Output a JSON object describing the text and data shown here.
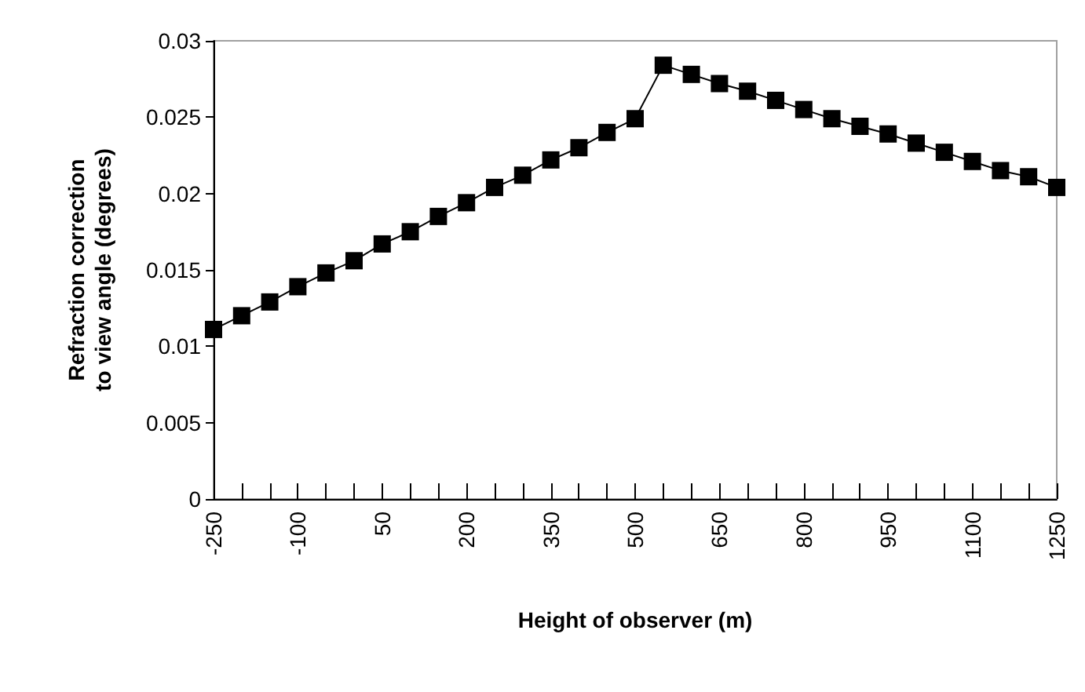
{
  "chart_data": {
    "type": "line",
    "xlabel": "Height of observer (m)",
    "ylabel": "Refraction correction to view angle (degrees)",
    "x": [
      -250,
      -200,
      -150,
      -100,
      -50,
      0,
      50,
      100,
      150,
      200,
      250,
      300,
      350,
      400,
      450,
      500,
      550,
      600,
      650,
      700,
      750,
      800,
      850,
      900,
      950,
      1000,
      1050,
      1100,
      1150,
      1200,
      1250
    ],
    "series": [
      {
        "color": "#000000",
        "values": [
          0.0111,
          0.012,
          0.0129,
          0.0139,
          0.0148,
          0.0156,
          0.0167,
          0.0175,
          0.0185,
          0.0194,
          0.0204,
          0.0212,
          0.0222,
          0.023,
          0.024,
          0.0249,
          0.0284,
          0.0278,
          0.0272,
          0.0267,
          0.0261,
          0.0255,
          0.0249,
          0.0244,
          0.0239,
          0.0233,
          0.0227,
          0.0221,
          0.0215,
          0.0211,
          0.0204
        ]
      }
    ],
    "xlim": [
      -250,
      1250
    ],
    "xticks": [
      -250,
      {
        "value": -200,
        "label": null
      },
      {
        "value": -150,
        "label": null
      },
      -100,
      {
        "value": -50,
        "label": null
      },
      {
        "value": 0,
        "label": null
      },
      50,
      {
        "value": 100,
        "label": null
      },
      {
        "value": 150,
        "label": null
      },
      200,
      {
        "value": 250,
        "label": null
      },
      {
        "value": 300,
        "label": null
      },
      350,
      {
        "value": 400,
        "label": null
      },
      {
        "value": 450,
        "label": null
      },
      500,
      {
        "value": 550,
        "label": null
      },
      {
        "value": 600,
        "label": null
      },
      650,
      {
        "value": 700,
        "label": null
      },
      {
        "value": 750,
        "label": null
      },
      800,
      {
        "value": 850,
        "label": null
      },
      {
        "value": 900,
        "label": null
      },
      950,
      {
        "value": 1000,
        "label": null
      },
      {
        "value": 1050,
        "label": null
      },
      1100,
      {
        "value": 1150,
        "label": null
      },
      {
        "value": 1200,
        "label": null
      },
      1250
    ],
    "ylim": [
      0,
      0.03
    ],
    "yticks": [
      0,
      0.005,
      0.01,
      0.015,
      0.02,
      0.025,
      0.03
    ],
    "grid": false,
    "marker": "square",
    "line_style": "solid"
  }
}
